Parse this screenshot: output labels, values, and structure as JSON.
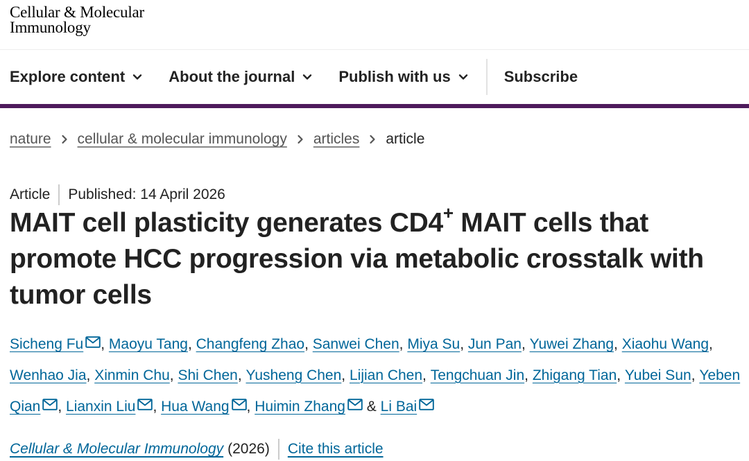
{
  "journal_logo": {
    "line1": "Cellular & Molecular",
    "line2": "Immunology"
  },
  "nav": {
    "items": [
      {
        "label": "Explore content",
        "icon": "chevron-down-icon"
      },
      {
        "label": "About the journal",
        "icon": "chevron-down-icon"
      },
      {
        "label": "Publish with us",
        "icon": "chevron-down-icon"
      }
    ],
    "subscribe_label": "Subscribe",
    "accent_color": "#4e1a5c"
  },
  "breadcrumb": {
    "items": [
      "nature",
      "cellular & molecular immunology",
      "articles"
    ],
    "current": "article",
    "separator_icon": "chevron-right-icon"
  },
  "article": {
    "type": "Article",
    "published": "Published: 14 April 2026",
    "title_pre": "MAIT cell plasticity generates CD4",
    "title_sup": "+",
    "title_post": " MAIT cells that promote HCC progression via metabolic crosstalk with tumor cells",
    "link_color": "#006699"
  },
  "authors": [
    {
      "name": "Sicheng Fu",
      "email": true
    },
    {
      "name": "Maoyu Tang",
      "email": false
    },
    {
      "name": "Changfeng Zhao",
      "email": false
    },
    {
      "name": "Sanwei Chen",
      "email": false
    },
    {
      "name": "Miya Su",
      "email": false
    },
    {
      "name": "Jun Pan",
      "email": false
    },
    {
      "name": "Yuwei Zhang",
      "email": false
    },
    {
      "name": "Xiaohu Wang",
      "email": false
    },
    {
      "name": "Wenhao Jia",
      "email": false
    },
    {
      "name": "Xinmin Chu",
      "email": false
    },
    {
      "name": "Shi Chen",
      "email": false
    },
    {
      "name": "Yusheng Chen",
      "email": false
    },
    {
      "name": "Lijian Chen",
      "email": false
    },
    {
      "name": "Tengchuan Jin",
      "email": false
    },
    {
      "name": "Zhigang Tian",
      "email": false
    },
    {
      "name": "Yubei Sun",
      "email": false
    },
    {
      "name": "Yeben Qian",
      "email": true
    },
    {
      "name": "Lianxin Liu",
      "email": true
    },
    {
      "name": "Hua Wang",
      "email": true
    },
    {
      "name": "Huimin Zhang",
      "email": true
    },
    {
      "name": "Li Bai",
      "email": true
    }
  ],
  "author_separators": {
    "comma": ", ",
    "and": " & "
  },
  "citation": {
    "journal": "Cellular & Molecular Immunology",
    "year": "(2026)",
    "cite_label": "Cite this article"
  }
}
